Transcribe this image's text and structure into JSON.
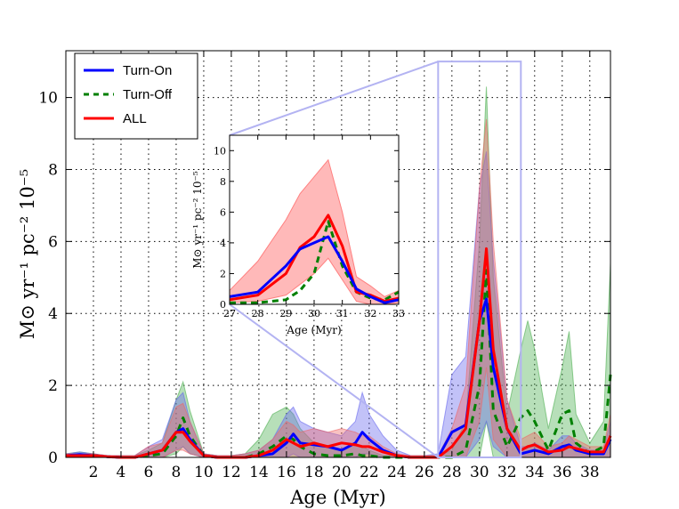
{
  "chart_data": [
    {
      "type": "line",
      "title": "",
      "xlabel": "Age (Myr)",
      "ylabel": "M⊙ yr⁻¹ pc⁻² 10⁻⁵",
      "xlim": [
        0,
        39.5
      ],
      "ylim": [
        0,
        11.3
      ],
      "xticks": [
        2,
        4,
        6,
        8,
        10,
        12,
        14,
        16,
        18,
        20,
        22,
        24,
        26,
        28,
        30,
        32,
        34,
        36,
        38
      ],
      "yticks": [
        0,
        2,
        4,
        6,
        8,
        10
      ],
      "grid": true,
      "legend_position": "top-left",
      "x": [
        0,
        1,
        2,
        3,
        4,
        5,
        6,
        7,
        8,
        8.5,
        9,
        10,
        11,
        12,
        13,
        14,
        15,
        16,
        16.5,
        17,
        18,
        19,
        20,
        21,
        21.5,
        22,
        23,
        24,
        25,
        26,
        27,
        28,
        29,
        30,
        30.5,
        31,
        32,
        33,
        33.5,
        34,
        35,
        36,
        36.5,
        37,
        38,
        39,
        39.5
      ],
      "series": [
        {
          "name": "Turn-On",
          "color": "#0000ff",
          "dashed": false,
          "fill": "#6666ee",
          "values": [
            0.05,
            0.08,
            0.05,
            0.02,
            0,
            0,
            0.1,
            0.2,
            0.7,
            0.8,
            0.5,
            0.05,
            0,
            0,
            0,
            0.05,
            0.1,
            0.4,
            0.65,
            0.4,
            0.35,
            0.3,
            0.2,
            0.4,
            0.7,
            0.5,
            0.2,
            0.05,
            0,
            0,
            0,
            0.7,
            0.9,
            3.8,
            4.4,
            2.5,
            0.8,
            0.1,
            0.15,
            0.2,
            0.1,
            0.3,
            0.35,
            0.2,
            0.1,
            0.1,
            0.5
          ],
          "upper": [
            0.1,
            0.15,
            0.1,
            0.05,
            0.05,
            0.05,
            0.3,
            0.5,
            1.6,
            1.8,
            1.0,
            0.1,
            0.05,
            0.05,
            0.1,
            0.2,
            0.5,
            1.2,
            1.4,
            1.0,
            0.8,
            0.7,
            0.6,
            1.0,
            1.8,
            1.2,
            0.6,
            0.2,
            0.05,
            0.05,
            0.1,
            2.3,
            2.8,
            7.5,
            8.5,
            5.5,
            1.6,
            0.3,
            0.3,
            0.4,
            0.2,
            0.6,
            0.6,
            0.4,
            0.2,
            0.2,
            1.0
          ],
          "lower": [
            0,
            0,
            0,
            0,
            0,
            0,
            0,
            0,
            0.2,
            0.3,
            0.1,
            0,
            0,
            0,
            0,
            0,
            0,
            0,
            0.1,
            0,
            0,
            0,
            0,
            0,
            0.1,
            0.1,
            0,
            0,
            0,
            0,
            0,
            0,
            0,
            0.5,
            1.0,
            0.3,
            0,
            0,
            0,
            0,
            0,
            0,
            0,
            0,
            0,
            0,
            0
          ]
        },
        {
          "name": "Turn-Off",
          "color": "#008000",
          "dashed": true,
          "fill": "#4caf50",
          "values": [
            0.05,
            0.05,
            0.05,
            0.02,
            0,
            0,
            0.05,
            0.1,
            0.6,
            1.1,
            0.6,
            0.05,
            0,
            0,
            0,
            0.1,
            0.3,
            0.6,
            0.5,
            0.3,
            0.1,
            0.05,
            0.05,
            0.1,
            0.05,
            0.05,
            0,
            0,
            0,
            0,
            0,
            0,
            0.2,
            2.0,
            5.2,
            1.3,
            0.3,
            1.1,
            1.3,
            1.0,
            0.2,
            1.2,
            1.3,
            0.4,
            0.1,
            0.3,
            2.3
          ],
          "upper": [
            0.1,
            0.15,
            0.1,
            0.05,
            0.05,
            0.05,
            0.2,
            0.4,
            1.6,
            2.1,
            1.3,
            0.1,
            0.05,
            0.05,
            0.1,
            0.5,
            1.2,
            1.4,
            1.2,
            0.8,
            0.4,
            0.3,
            0.2,
            0.4,
            0.3,
            0.2,
            0.05,
            0.05,
            0.05,
            0.05,
            0.05,
            0.2,
            1.0,
            6.0,
            10.3,
            5.0,
            1.2,
            3.0,
            3.8,
            3.0,
            0.8,
            2.5,
            3.5,
            1.2,
            0.4,
            1.0,
            5.4
          ],
          "lower": [
            0,
            0,
            0,
            0,
            0,
            0,
            0,
            0,
            0.1,
            0.3,
            0.1,
            0,
            0,
            0,
            0,
            0,
            0,
            0,
            0,
            0,
            0,
            0,
            0,
            0,
            0,
            0,
            0,
            0,
            0,
            0,
            0,
            0,
            0,
            0,
            1.0,
            0,
            0,
            0,
            0,
            0,
            0,
            0,
            0,
            0,
            0,
            0,
            0
          ]
        },
        {
          "name": "ALL",
          "color": "#ff0000",
          "dashed": false,
          "fill": "#ee6666",
          "values": [
            0.05,
            0.05,
            0.05,
            0.02,
            0,
            0,
            0.1,
            0.2,
            0.7,
            0.7,
            0.45,
            0.05,
            0,
            0,
            0,
            0.05,
            0.2,
            0.5,
            0.4,
            0.3,
            0.4,
            0.3,
            0.4,
            0.35,
            0.3,
            0.3,
            0.15,
            0.05,
            0,
            0,
            0,
            0.3,
            0.8,
            3.8,
            5.8,
            3.0,
            0.8,
            0.2,
            0.3,
            0.35,
            0.15,
            0.2,
            0.3,
            0.25,
            0.15,
            0.15,
            0.6
          ],
          "upper": [
            0.1,
            0.1,
            0.1,
            0.05,
            0.05,
            0.05,
            0.3,
            0.4,
            1.4,
            1.5,
            1.0,
            0.1,
            0.05,
            0.05,
            0.1,
            0.2,
            0.5,
            1.0,
            0.9,
            0.7,
            0.8,
            0.7,
            0.8,
            0.7,
            0.6,
            0.6,
            0.3,
            0.1,
            0.05,
            0.05,
            0.05,
            0.8,
            2.0,
            7.5,
            9.4,
            6.0,
            1.6,
            0.5,
            0.6,
            0.7,
            0.3,
            0.4,
            0.6,
            0.5,
            0.3,
            0.3,
            1.2
          ],
          "lower": [
            0,
            0,
            0,
            0,
            0,
            0,
            0,
            0,
            0.2,
            0.2,
            0.1,
            0,
            0,
            0,
            0,
            0,
            0,
            0,
            0,
            0,
            0,
            0,
            0,
            0,
            0,
            0,
            0,
            0,
            0,
            0,
            0,
            0,
            0,
            1.0,
            2.5,
            0.5,
            0,
            0,
            0,
            0,
            0,
            0,
            0,
            0,
            0,
            0,
            0
          ]
        }
      ]
    },
    {
      "type": "line",
      "title": "",
      "xlabel": "Age (Myr)",
      "ylabel": "M⊙ yr⁻¹ pc⁻² 10⁻⁵",
      "xlim": [
        27,
        33
      ],
      "ylim": [
        0,
        11
      ],
      "xticks": [
        27,
        28,
        29,
        30,
        31,
        32,
        33
      ],
      "yticks": [
        0,
        2,
        4,
        6,
        8,
        10
      ],
      "grid": false,
      "x": [
        27,
        28,
        29,
        29.5,
        30,
        30.5,
        31,
        31.5,
        32,
        32.5,
        33
      ],
      "series": [
        {
          "name": "Turn-On",
          "color": "#0000ff",
          "dashed": false,
          "values": [
            0.5,
            0.8,
            2.5,
            3.6,
            4.0,
            4.4,
            2.8,
            1.0,
            0.5,
            0.1,
            0.3
          ]
        },
        {
          "name": "Turn-Off",
          "color": "#008000",
          "dashed": true,
          "values": [
            0.1,
            0.1,
            0.3,
            0.9,
            2.0,
            5.4,
            2.5,
            0.8,
            0.4,
            0.3,
            0.8
          ]
        },
        {
          "name": "ALL",
          "color": "#ff0000",
          "dashed": false,
          "fill": "#ff8080",
          "values": [
            0.3,
            0.6,
            2.0,
            3.7,
            4.4,
            5.8,
            3.8,
            0.8,
            0.6,
            0.2,
            0.4
          ],
          "upper": [
            0.9,
            2.8,
            5.5,
            7.2,
            8.3,
            9.4,
            6.0,
            1.8,
            1.2,
            0.5,
            0.9
          ],
          "lower": [
            0.1,
            0.2,
            0.6,
            1.3,
            2.0,
            3.0,
            1.6,
            0.2,
            0,
            0,
            0.1
          ]
        }
      ]
    }
  ],
  "colors": {
    "zoom_box": "#b3b3f2"
  }
}
